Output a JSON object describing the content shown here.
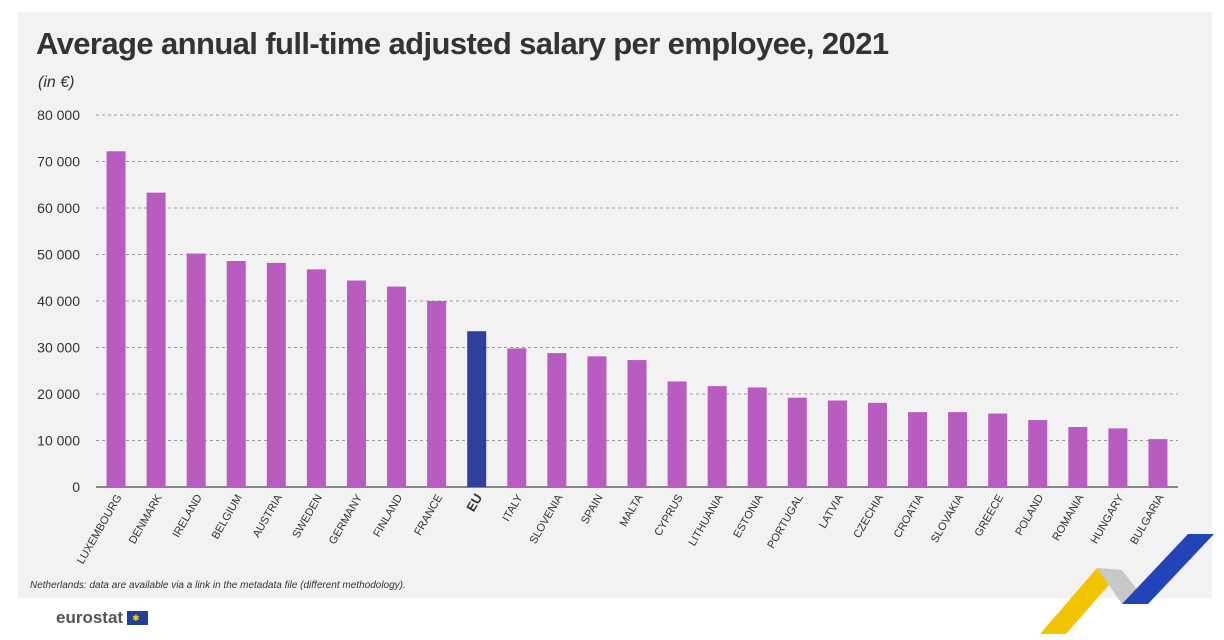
{
  "title": "Average annual full-time adjusted salary per employee, 2021",
  "unit_label": "(in €)",
  "footnote": "Netherlands: data are available via a link in the metadata file (different methodology).",
  "logo_text": "eurostat",
  "colors": {
    "bar": "#b85cbf",
    "highlight": "#2e3f9c",
    "grid": "#9a9a9a",
    "text": "#333333",
    "stripe_yellow": "#f2c400",
    "stripe_blue": "#2344b8",
    "stripe_grey": "#c8c8c8"
  },
  "chart_data": {
    "type": "bar",
    "title": "Average annual full-time adjusted salary per employee, 2021",
    "ylabel": "(in €)",
    "ylim": [
      0,
      80000
    ],
    "yticks": [
      0,
      10000,
      20000,
      30000,
      40000,
      50000,
      60000,
      70000,
      80000
    ],
    "ytick_labels": [
      "0",
      "10 000",
      "20 000",
      "30 000",
      "40 000",
      "50 000",
      "60 000",
      "70 000",
      "80 000"
    ],
    "grid": "horizontal dashed",
    "highlight_category": "EU",
    "categories": [
      "LUXEMBOURG",
      "DENMARK",
      "IRELAND",
      "BELGIUM",
      "AUSTRIA",
      "SWEDEN",
      "GERMANY",
      "FINLAND",
      "FRANCE",
      "EU",
      "ITALY",
      "SLOVENIA",
      "SPAIN",
      "MALTA",
      "CYPRUS",
      "LITHUANIA",
      "ESTONIA",
      "PORTUGAL",
      "LATVIA",
      "CZECHIA",
      "CROATIA",
      "SLOVAKIA",
      "GREECE",
      "POLAND",
      "ROMANIA",
      "HUNGARY",
      "BULGARIA"
    ],
    "values": [
      72200,
      63300,
      50200,
      48600,
      48200,
      46800,
      44400,
      43100,
      40000,
      33500,
      29800,
      28800,
      28100,
      27300,
      22700,
      21700,
      21400,
      19200,
      18600,
      18100,
      16100,
      16100,
      15800,
      14400,
      12900,
      12600,
      10300
    ]
  }
}
